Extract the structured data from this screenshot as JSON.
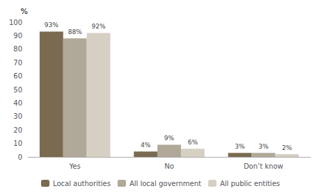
{
  "chart_data": {
    "type": "bar",
    "y_label": "%",
    "categories": [
      "Yes",
      "No",
      "Don’t know"
    ],
    "series": [
      {
        "name": "Local authorities",
        "color": "#7a6a50",
        "values": [
          93,
          4,
          3
        ],
        "value_labels": [
          "93%",
          "4%",
          "3%"
        ]
      },
      {
        "name": "All local government",
        "color": "#b0a898",
        "values": [
          88,
          9,
          3
        ],
        "value_labels": [
          "88%",
          "9%",
          "3%"
        ]
      },
      {
        "name": "All public entities",
        "color": "#d6cfc4",
        "values": [
          92,
          6,
          2
        ],
        "value_labels": [
          "92%",
          "6%",
          "2%"
        ]
      }
    ],
    "ylim": [
      0,
      100
    ],
    "yticks": [
      0,
      10,
      20,
      30,
      40,
      50,
      60,
      70,
      80,
      90,
      100
    ],
    "grid": false,
    "legend": "bottom",
    "data_labels": true
  }
}
